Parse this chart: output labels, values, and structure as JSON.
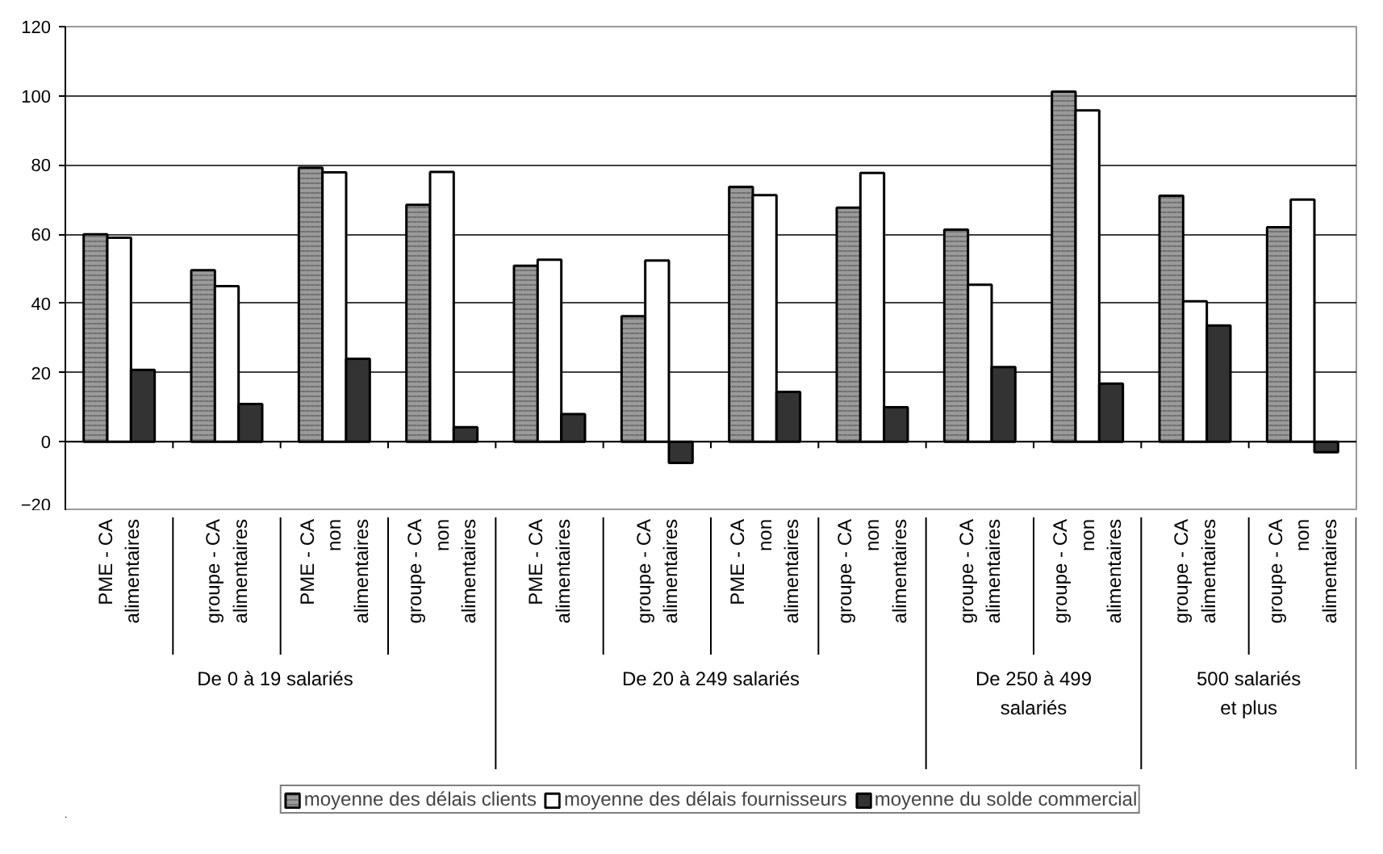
{
  "chart_data": {
    "type": "bar",
    "categories": [
      "PME - CA alimentaires",
      "groupe - CA alimentaires",
      "PME - CA non alimentaires",
      "groupe - CA non alimentaires",
      "PME - CA alimentaires",
      "groupe - CA alimentaires",
      "PME - CA non alimentaires",
      "groupe - CA non alimentaires",
      "groupe - CA alimentaires",
      "groupe - CA non alimentaires",
      "groupe - CA alimentaires",
      "groupe - CA non alimentaires"
    ],
    "annotations": [
      "De  0 à 19  salariés",
      "De 20 à 249 salariés",
      "De 250 à 499 salariés",
      "500 salariés et plus"
    ],
    "series": [
      {
        "name": "moyenne des délais clients",
        "color": "#9a9a9a",
        "values": [
          60,
          49.6,
          79.2,
          68.5,
          50.9,
          36.3,
          73.7,
          67.7,
          61.3,
          101.2,
          71.1,
          62
        ]
      },
      {
        "name": "moyenne des délais fournisseurs",
        "color": "#ffffff",
        "values": [
          59,
          45,
          77.9,
          78,
          52.6,
          52.4,
          71.3,
          77.7,
          45.4,
          95.8,
          40.6,
          70
        ]
      },
      {
        "name": "moyenne du solde commercial",
        "color": "#333333",
        "values": [
          20.8,
          10.9,
          24,
          4.2,
          8,
          -6.1,
          14.4,
          10,
          21.6,
          16.8,
          33.6,
          -3
        ]
      }
    ],
    "ylim": [
      -20,
      120
    ],
    "yticks": [
      -20,
      0,
      20,
      40,
      60,
      80,
      100,
      120
    ],
    "grid": "y",
    "legend": "bottom"
  }
}
